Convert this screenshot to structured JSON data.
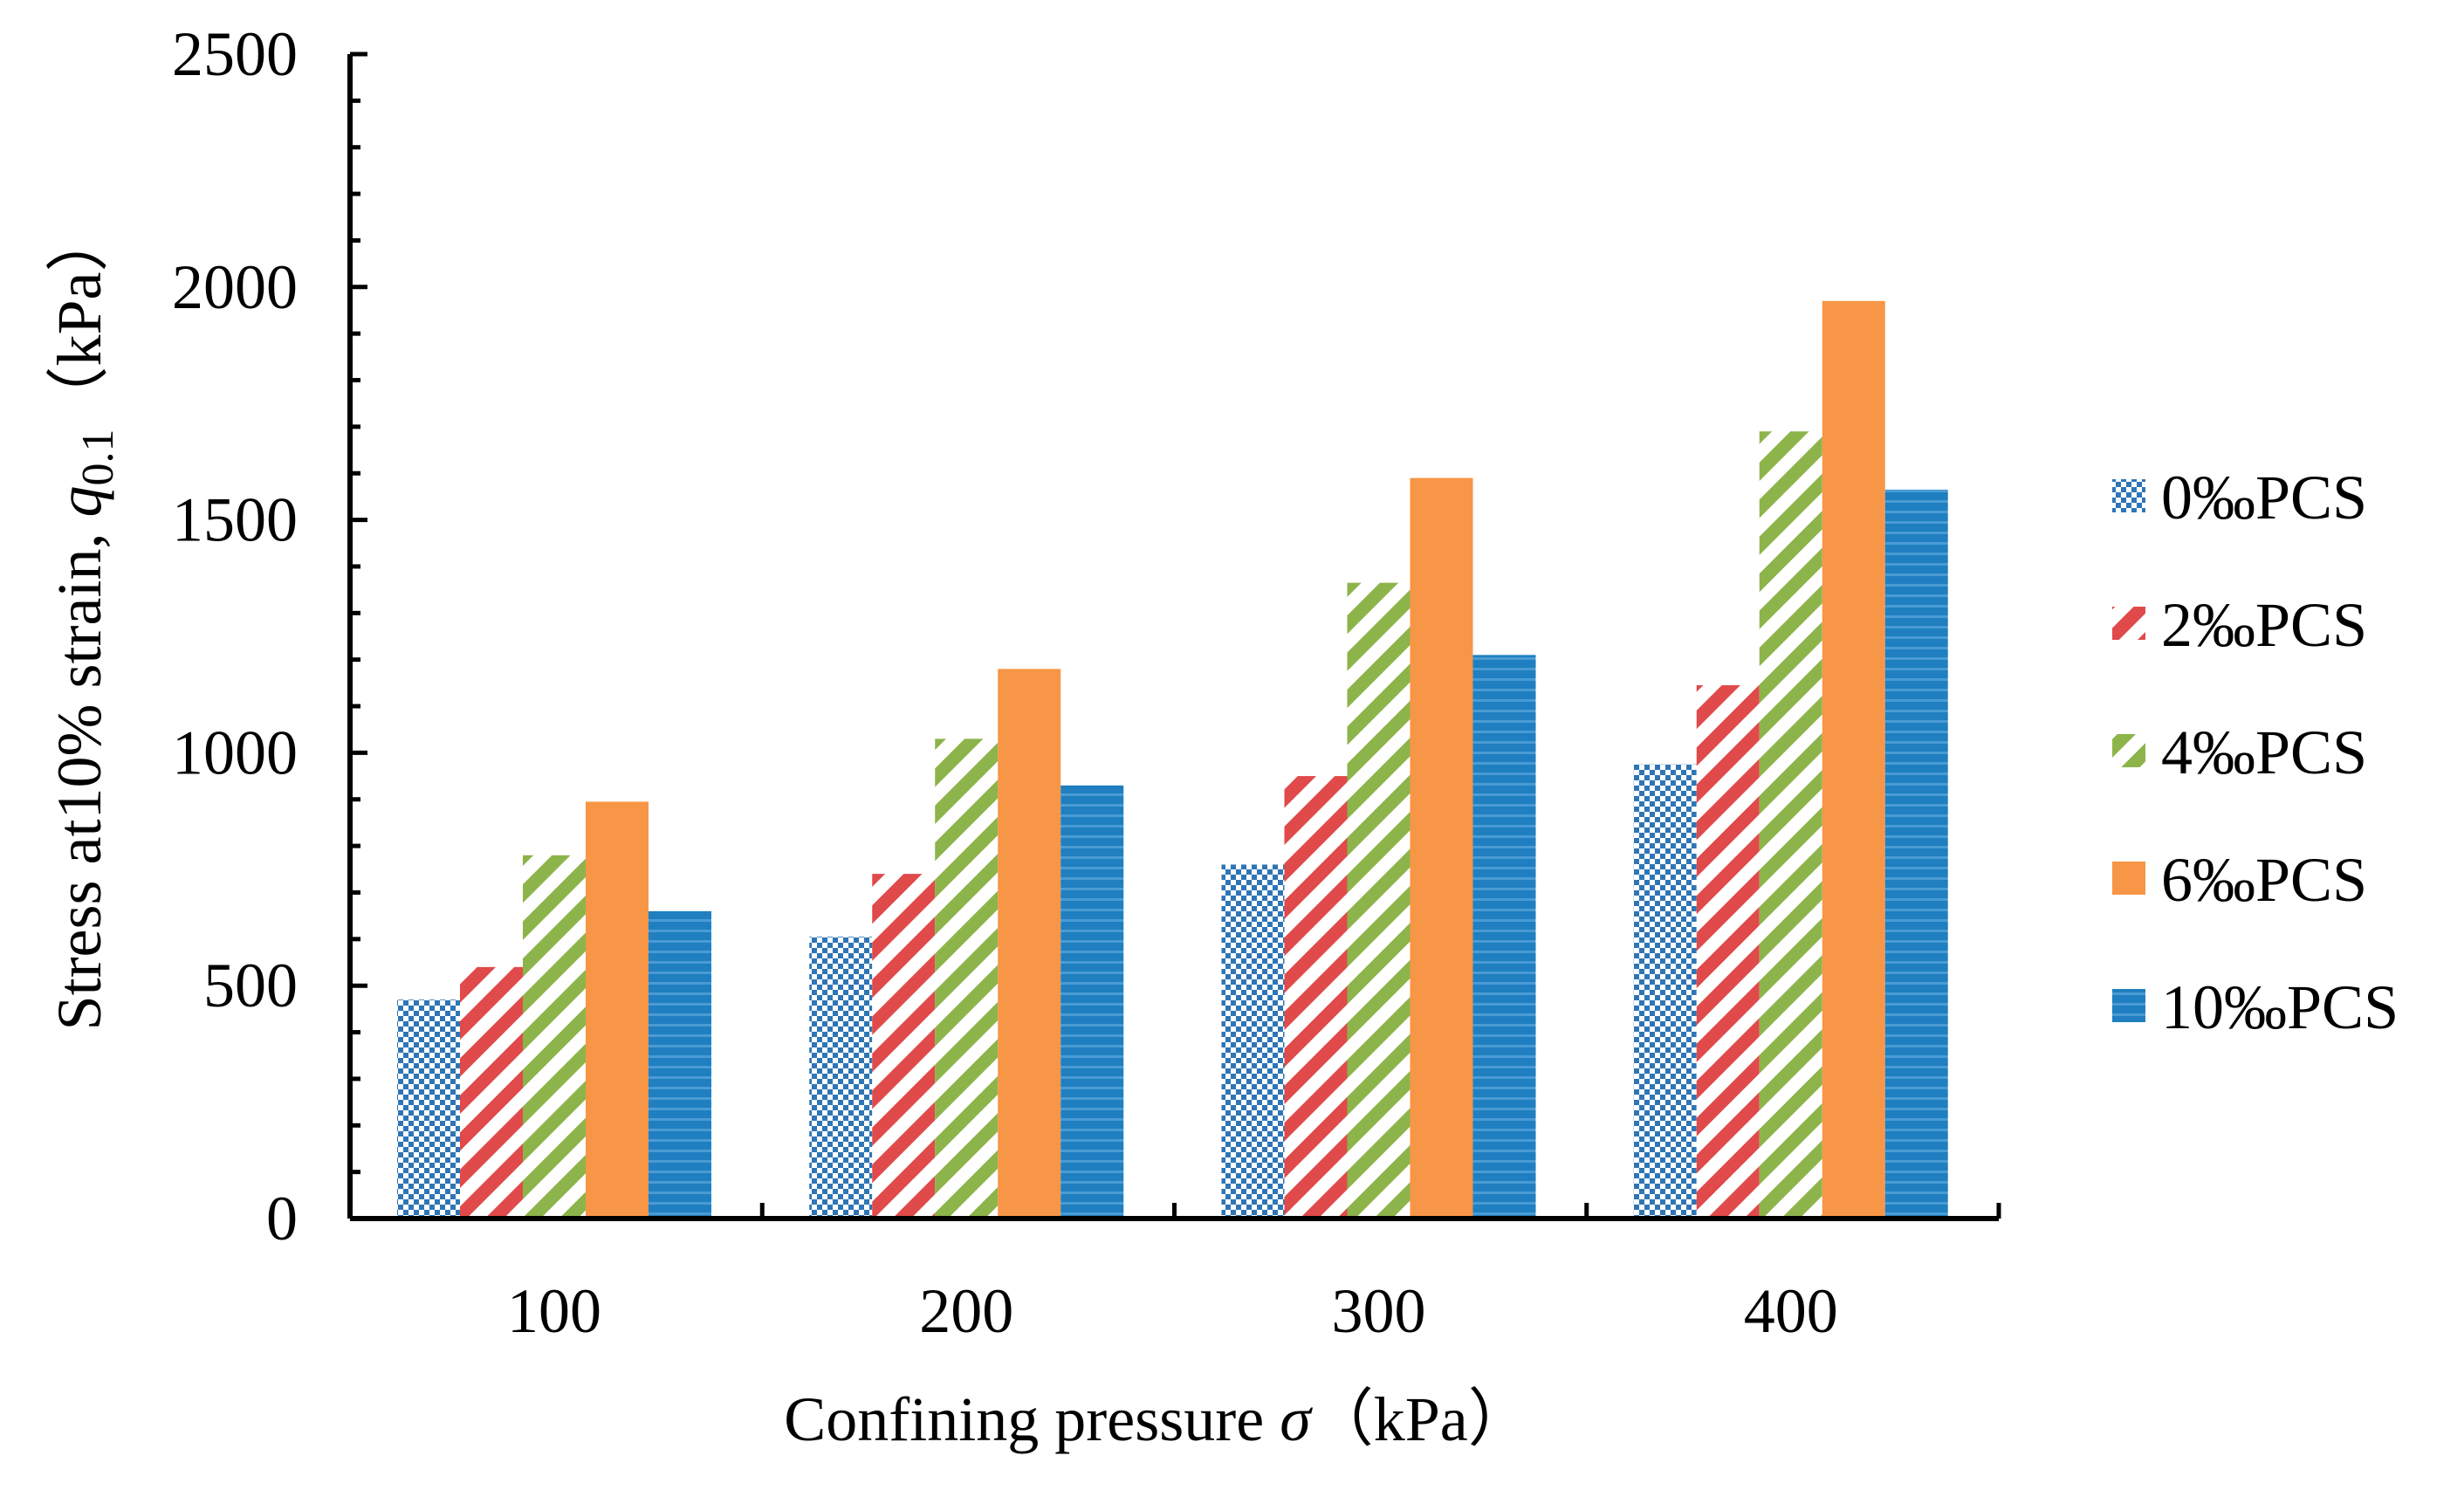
{
  "chart_data": {
    "type": "bar",
    "title": "",
    "xlabel": "Confining pressure σ（kPa）",
    "xlabel_parts": {
      "main": "Confining pressure ",
      "symbol": "σ",
      "unit": "（kPa）"
    },
    "ylabel": "Stress at10% strain, q0.1（kPa）",
    "ylabel_parts": {
      "main": "Stress at10% strain, ",
      "symbol": "q",
      "subscript": "0.1",
      "unit": "（kPa）"
    },
    "categories": [
      "100",
      "200",
      "300",
      "400"
    ],
    "ylim": [
      0,
      2500
    ],
    "yticks": [
      0,
      500,
      1000,
      1500,
      2000,
      2500
    ],
    "grid": false,
    "legend_position": "right",
    "series": [
      {
        "name": "0‰PCS",
        "pattern": "checker",
        "color": "#2e75b6",
        "values": [
          470,
          605,
          760,
          975
        ]
      },
      {
        "name": "2‰PCS",
        "pattern": "diagonal",
        "color": "#e04a4a",
        "values": [
          540,
          740,
          950,
          1145
        ]
      },
      {
        "name": "4‰PCS",
        "pattern": "diagonal",
        "color": "#8db44a",
        "values": [
          780,
          1030,
          1365,
          1690
        ]
      },
      {
        "name": "6‰PCS",
        "pattern": "solid",
        "color": "#f79646",
        "values": [
          895,
          1180,
          1590,
          1970
        ]
      },
      {
        "name": "10‰PCS",
        "pattern": "hstripe",
        "color": "#1f7fc0",
        "values": [
          660,
          930,
          1210,
          1565
        ]
      }
    ]
  }
}
